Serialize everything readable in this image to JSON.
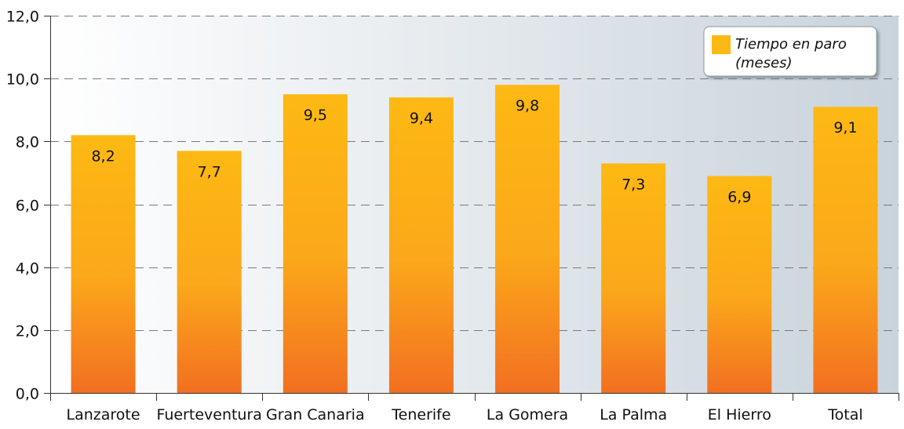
{
  "chart_data": {
    "type": "bar",
    "categories": [
      "Lanzarote",
      "Fuerteventura",
      "Gran Canaria",
      "Tenerife",
      "La Gomera",
      "La Palma",
      "El Hierro",
      "Total"
    ],
    "series": [
      {
        "name": "Tiempo en paro (meses)",
        "values": [
          8.2,
          7.7,
          9.5,
          9.4,
          9.8,
          7.3,
          6.9,
          9.1
        ],
        "labels": [
          "8,2",
          "7,7",
          "9,5",
          "9,4",
          "9,8",
          "7,3",
          "6,9",
          "9,1"
        ]
      }
    ],
    "ylim": [
      0,
      12
    ],
    "yticks": [
      0,
      2,
      4,
      6,
      8,
      10,
      12
    ],
    "ytick_labels": [
      "0,0",
      "2,0",
      "4,0",
      "6,0",
      "8,0",
      "10,0",
      "12,0"
    ],
    "grid": "horizontal dashed",
    "legend": {
      "position": "top-right",
      "lines": [
        "Tiempo en paro",
        "(meses)"
      ]
    },
    "colors": {
      "bar_top": "#FDB913",
      "bar_bottom": "#F26F21",
      "legend_swatch": "#FDB913",
      "background_left": "#FFFFFF",
      "background_right": "#C9D3DB",
      "grid": "#7A7A7A"
    }
  }
}
